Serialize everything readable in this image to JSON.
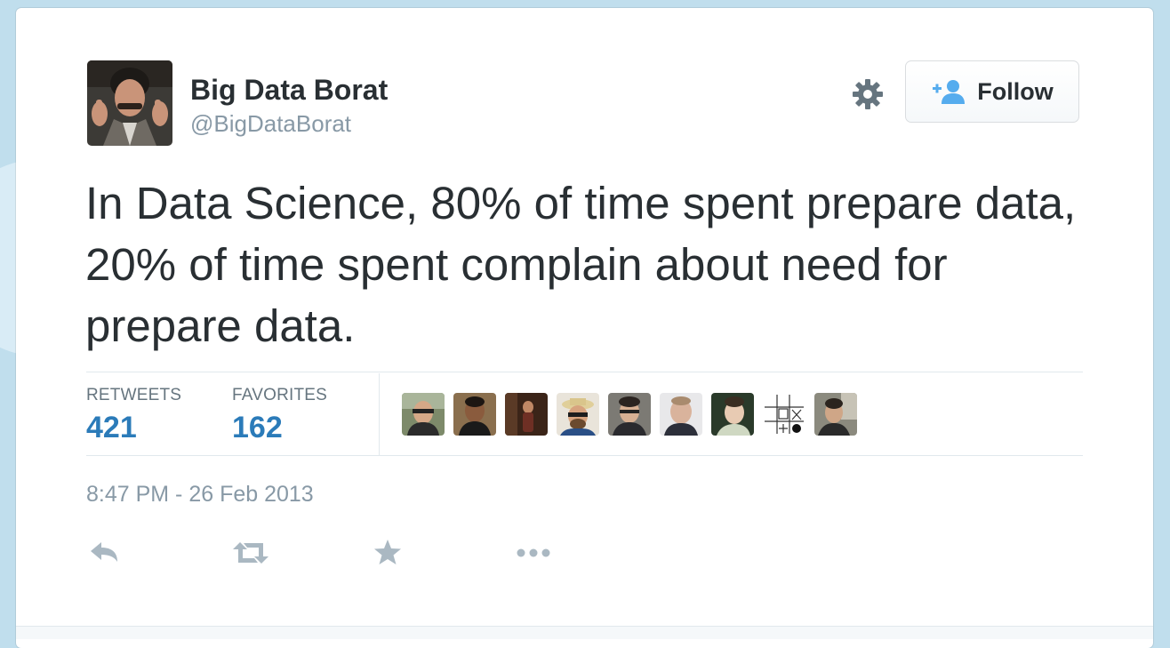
{
  "user": {
    "display_name": "Big Data Borat",
    "screen_name": "@BigDataBorat"
  },
  "follow_button": {
    "label": "Follow",
    "icon": "person-add-icon"
  },
  "settings": {
    "icon": "gear-icon"
  },
  "tweet": {
    "text": "In Data Science, 80% of time spent prepare data, 20% of time spent complain about need for prepare data.",
    "timestamp": "8:47 PM - 26 Feb 2013"
  },
  "stats": {
    "retweets_label": "RETWEETS",
    "retweets_count": "421",
    "favorites_label": "FAVORITES",
    "favorites_count": "162"
  },
  "favoriters": [
    {
      "icon": "user-avatar-1"
    },
    {
      "icon": "user-avatar-2"
    },
    {
      "icon": "user-avatar-3"
    },
    {
      "icon": "user-avatar-4"
    },
    {
      "icon": "user-avatar-5"
    },
    {
      "icon": "user-avatar-6"
    },
    {
      "icon": "user-avatar-7"
    },
    {
      "icon": "user-avatar-8"
    },
    {
      "icon": "user-avatar-9"
    }
  ],
  "actions": [
    {
      "icon": "reply-icon"
    },
    {
      "icon": "retweet-icon"
    },
    {
      "icon": "favorite-star-icon"
    },
    {
      "icon": "more-ellipsis-icon"
    }
  ],
  "colors": {
    "page_background": "#c0deed",
    "text_primary": "#292f33",
    "text_secondary": "#8899a6",
    "link_blue": "#2b7bb9",
    "follow_icon_blue": "#55acee",
    "action_gray": "#aab8c2"
  }
}
